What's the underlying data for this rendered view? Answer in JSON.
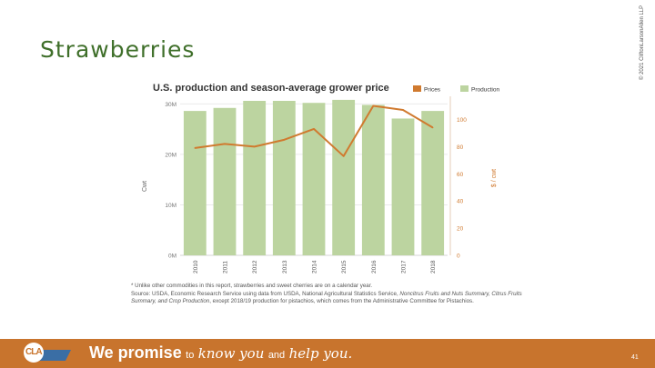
{
  "copyright": "© 2021 CliftonLarsonAllen LLP",
  "slide_title": "Strawberries",
  "chart_data": {
    "type": "bar+line",
    "title": "U.S. production and season-average grower price",
    "categories": [
      "2010",
      "2011",
      "2012",
      "2013",
      "2014",
      "2015",
      "2016",
      "2017",
      "2018"
    ],
    "series": [
      {
        "name": "Production",
        "type": "bar",
        "axis": "left",
        "color": "#bcd4a0",
        "values": [
          28.6,
          29.2,
          30.6,
          30.6,
          30.2,
          30.8,
          29.8,
          27.1,
          28.6
        ]
      },
      {
        "name": "Prices",
        "type": "line",
        "axis": "right",
        "color": "#d07a2f",
        "values": [
          79,
          82,
          80,
          85,
          93,
          73,
          110,
          107,
          94
        ]
      }
    ],
    "ylabel_left": "Cwt",
    "ylabel_right": "$ / cwt",
    "yticks_left": [
      {
        "value": 30,
        "label": "30M"
      },
      {
        "value": 20,
        "label": "20M"
      },
      {
        "value": 10,
        "label": "10M"
      },
      {
        "value": 0,
        "label": "0M"
      }
    ],
    "ylim_left": [
      0,
      31.5
    ],
    "yticks_right": [
      "100",
      "80",
      "60",
      "40",
      "20",
      "0"
    ],
    "yticks_right_values": [
      100,
      80,
      60,
      40,
      20,
      0
    ],
    "ylim_right": [
      0,
      117
    ],
    "legend": [
      "Prices",
      "Production"
    ],
    "legend_position": "top-right",
    "grid": true
  },
  "footnote": {
    "line1": "* Unlike other commodities in this report, strawberries and sweet cherries are on a calendar year.",
    "source_prefix": "Source: USDA, Economic Research Service using data from USDA, National Agricultural Statistics Service, ",
    "source_italic": "Noncitrus Fruits and Nuts Summary, Citrus Fruits Summary, and Crop Production",
    "source_suffix": ", except 2018/19 production for pistachios, which comes from the Administrative Committee for Pistachios."
  },
  "footer": {
    "logo_text": "CLA",
    "tagline_1": "We promise",
    "tagline_2": "to",
    "tagline_3": "know you",
    "tagline_4": "and",
    "tagline_5": "help you.",
    "page_number": "41",
    "background": "#c8742d"
  }
}
